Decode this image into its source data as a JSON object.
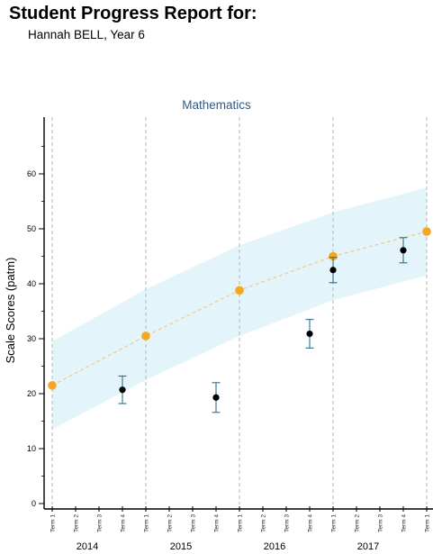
{
  "header": {
    "title": "Student Progress Report for:",
    "student": "Hannah BELL, Year 6"
  },
  "chart_data": {
    "type": "scatter",
    "title": "Mathematics",
    "xlabel": "",
    "ylabel": "Scale Scores (patm)",
    "ylim": [
      0,
      70
    ],
    "yticks": [
      0,
      10,
      20,
      30,
      40,
      50,
      60
    ],
    "grid": "dashed vertical lines at each Term 1",
    "years": [
      "2014",
      "2015",
      "2016",
      "2017"
    ],
    "terms": [
      "Term 1",
      "Term 2",
      "Term 3",
      "Term 4"
    ],
    "expected_band": {
      "x": [
        "2014 Term 1",
        "2015 Term 1",
        "2016 Term 1",
        "2017 Term 1",
        "2018 Term 1"
      ],
      "lower": [
        13.5,
        22.5,
        30.5,
        37.0,
        41.5
      ],
      "upper": [
        29.5,
        39.0,
        47.0,
        53.0,
        57.5
      ],
      "color": "#e3f5fb"
    },
    "expected_trend": {
      "x": [
        "2014 Term 1",
        "2015 Term 1",
        "2016 Term 1",
        "2017 Term 1",
        "2018 Term 1"
      ],
      "y": [
        21.5,
        30.5,
        38.8,
        45.0,
        49.5
      ],
      "color": "#f5a623"
    },
    "student_scores": {
      "x": [
        "2014 Term 4",
        "2015 Term 4",
        "2016 Term 4",
        "2017 Term 1",
        "2017 Term 4"
      ],
      "y": [
        20.7,
        19.3,
        30.9,
        42.5,
        46.1
      ],
      "err_low": [
        18.2,
        16.6,
        28.3,
        40.2,
        43.8
      ],
      "err_high": [
        23.2,
        22.0,
        33.5,
        44.8,
        48.4
      ],
      "color": "#000000",
      "error_color": "#2e6e8e"
    }
  }
}
